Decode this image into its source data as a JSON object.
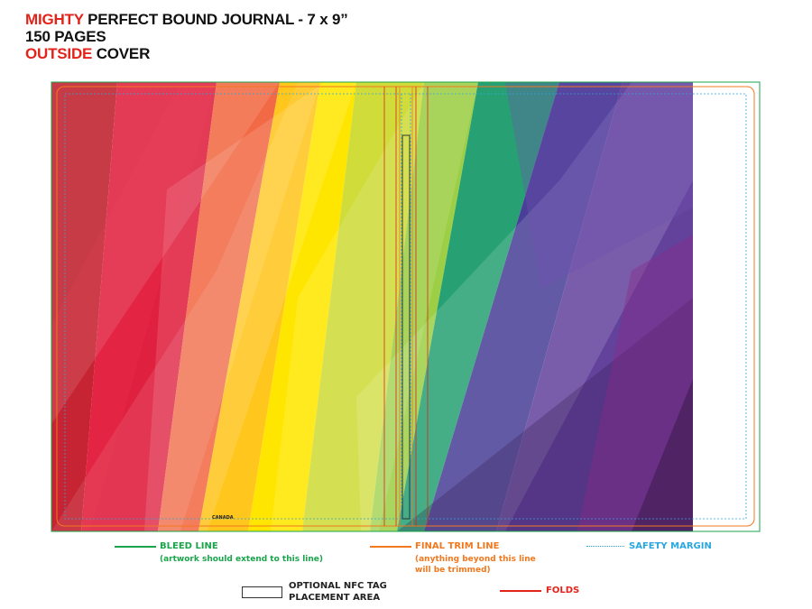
{
  "header": {
    "line1_accent": "MIGHTY",
    "line1_rest": " PERFECT BOUND JOURNAL - 7 x 9”",
    "line2": "150 PAGES",
    "line3_accent": "OUTSIDE",
    "line3_rest": " COVER"
  },
  "cover": {
    "imprint": "CANADA",
    "colors": {
      "bleed": "#1aa54b",
      "trim": "#f2781f",
      "safety": "#29a8e0",
      "fold": "#e2231a",
      "nfc": "#333333"
    }
  },
  "legend": {
    "bleed_title": "BLEED LINE",
    "bleed_note": "(artwork should extend to this line)",
    "trim_title": "FINAL TRIM LINE",
    "trim_note_1": "(anything beyond this line",
    "trim_note_2": "will be trimmed)",
    "safety_title": "SAFETY MARGIN",
    "nfc_title_1": "OPTIONAL NFC TAG",
    "nfc_title_2": "PLACEMENT AREA",
    "folds_title": "FOLDS"
  }
}
